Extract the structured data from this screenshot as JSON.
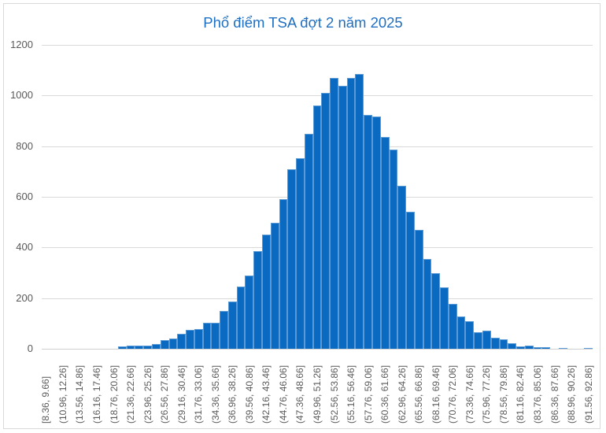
{
  "chart_data": {
    "type": "bar",
    "title": "Phổ điểm TSA đợt 2 năm 2025",
    "xlabel": "",
    "ylabel": "",
    "ylim": [
      0,
      1200
    ],
    "yticks": [
      0,
      200,
      400,
      600,
      800,
      1000,
      1200
    ],
    "grid": true,
    "legend": null,
    "bar_color": "#0a6ac1",
    "title_color": "#1f6fc0",
    "bin_start": 8.36,
    "bin_width": 1.3,
    "label_every": 2,
    "categories": [
      "[8.36, 9.66]",
      "(9.66, 10.96]",
      "(10.96, 12.26]",
      "(12.26, 13.56]",
      "(13.56, 14.86]",
      "(14.86, 16.16]",
      "(16.16, 17.46]",
      "(17.46, 18.76]",
      "(18.76, 20.06]",
      "(20.06, 21.36]",
      "(21.36, 22.66]",
      "(22.66, 23.96]",
      "(23.96, 25.26]",
      "(25.26, 26.56]",
      "(26.56, 27.86]",
      "(27.86, 29.16]",
      "(29.16, 30.46]",
      "(30.46, 31.76]",
      "(31.76, 33.06]",
      "(33.06, 34.36]",
      "(34.36, 35.66]",
      "(35.66, 36.96]",
      "(36.96, 38.26]",
      "(38.26, 39.56]",
      "(39.56, 40.86]",
      "(40.86, 42.16]",
      "(42.16, 43.46]",
      "(43.46, 44.76]",
      "(44.76, 46.06]",
      "(46.06, 47.36]",
      "(47.36, 48.66]",
      "(48.66, 49.96]",
      "(49.96, 51.26]",
      "(51.26, 52.56]",
      "(52.56, 53.86]",
      "(53.86, 55.16]",
      "(55.16, 56.46]",
      "(56.46, 57.76]",
      "(57.76, 59.06]",
      "(59.06, 60.36]",
      "(60.36, 61.66]",
      "(61.66, 62.96]",
      "(62.96, 64.26]",
      "(64.26, 65.56]",
      "(65.56, 66.86]",
      "(66.86, 68.16]",
      "(68.16, 69.46]",
      "(69.46, 70.76]",
      "(70.76, 72.06]",
      "(72.06, 73.36]",
      "(73.36, 74.66]",
      "(74.66, 75.96]",
      "(75.96, 77.26]",
      "(77.26, 78.56]",
      "(78.56, 79.86]",
      "(79.86, 81.16]",
      "(81.16, 82.46]",
      "(82.46, 83.76]",
      "(83.76, 85.06]",
      "(85.06, 86.36]",
      "(86.36, 87.66]",
      "(87.66, 88.96]",
      "(88.96, 90.26]",
      "(90.26, 91.56]",
      "(91.56, 92.86]"
    ],
    "values": [
      0,
      0,
      0,
      0,
      0,
      0,
      0,
      0,
      0,
      9,
      12,
      14,
      12,
      19,
      35,
      40,
      60,
      74,
      79,
      104,
      102,
      148,
      187,
      247,
      288,
      384,
      452,
      498,
      592,
      708,
      753,
      850,
      962,
      1009,
      1068,
      1038,
      1068,
      1084,
      922,
      916,
      835,
      788,
      643,
      542,
      471,
      354,
      298,
      242,
      178,
      129,
      108,
      66,
      73,
      45,
      37,
      21,
      10,
      13,
      6,
      6,
      0,
      4,
      0,
      0,
      4
    ]
  }
}
